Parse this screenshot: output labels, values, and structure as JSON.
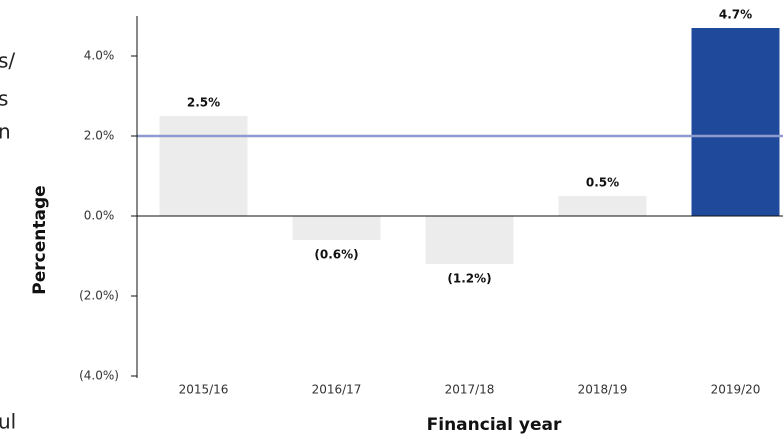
{
  "side_text": [
    "s/",
    "s",
    "n",
    "ul"
  ],
  "chart_data": {
    "type": "bar",
    "x_label": "Financial year",
    "y_label": "Percentage",
    "categories": [
      "2015/16",
      "2016/17",
      "2017/18",
      "2018/19",
      "2019/20"
    ],
    "values": [
      2.5,
      -0.6,
      -1.2,
      0.5,
      4.7
    ],
    "value_labels": [
      "2.5%",
      "(0.6%)",
      "(1.2%)",
      "0.5%",
      "4.7%"
    ],
    "colors": [
      "#ececec",
      "#ececec",
      "#ececec",
      "#ececec",
      "#1f4a9c"
    ],
    "ylim": [
      -4,
      5
    ],
    "yticks": [
      {
        "value": -4,
        "label": "(4.0%)"
      },
      {
        "value": -2,
        "label": "(2.0%)"
      },
      {
        "value": 0,
        "label": "0.0%"
      },
      {
        "value": 2,
        "label": "2.0%"
      },
      {
        "value": 4,
        "label": "4.0%"
      }
    ],
    "reference_line": {
      "value": 2,
      "color": "#8f9bd0"
    }
  }
}
